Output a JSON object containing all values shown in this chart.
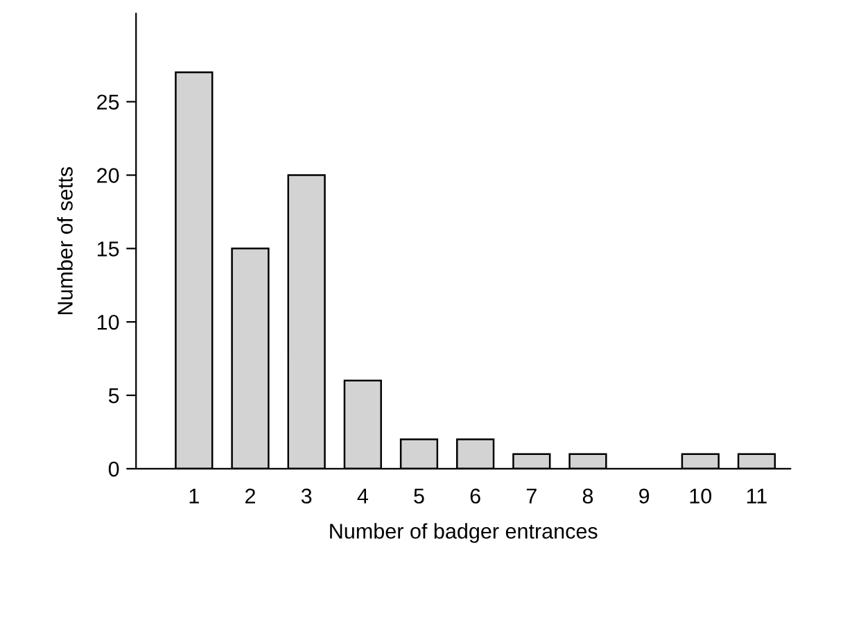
{
  "chart_data": {
    "type": "bar",
    "xlabel": "Number of badger entrances",
    "ylabel": "Number of setts",
    "categories": [
      "1",
      "2",
      "3",
      "4",
      "5",
      "6",
      "7",
      "8",
      "9",
      "10",
      "11"
    ],
    "values": [
      27,
      15,
      20,
      6,
      2,
      2,
      1,
      1,
      0,
      1,
      1
    ],
    "color": "#d3d3d3",
    "ylim": [
      0,
      31
    ],
    "yticks": [
      0,
      5,
      10,
      15,
      20,
      25
    ],
    "grid": false,
    "legend": false
  }
}
